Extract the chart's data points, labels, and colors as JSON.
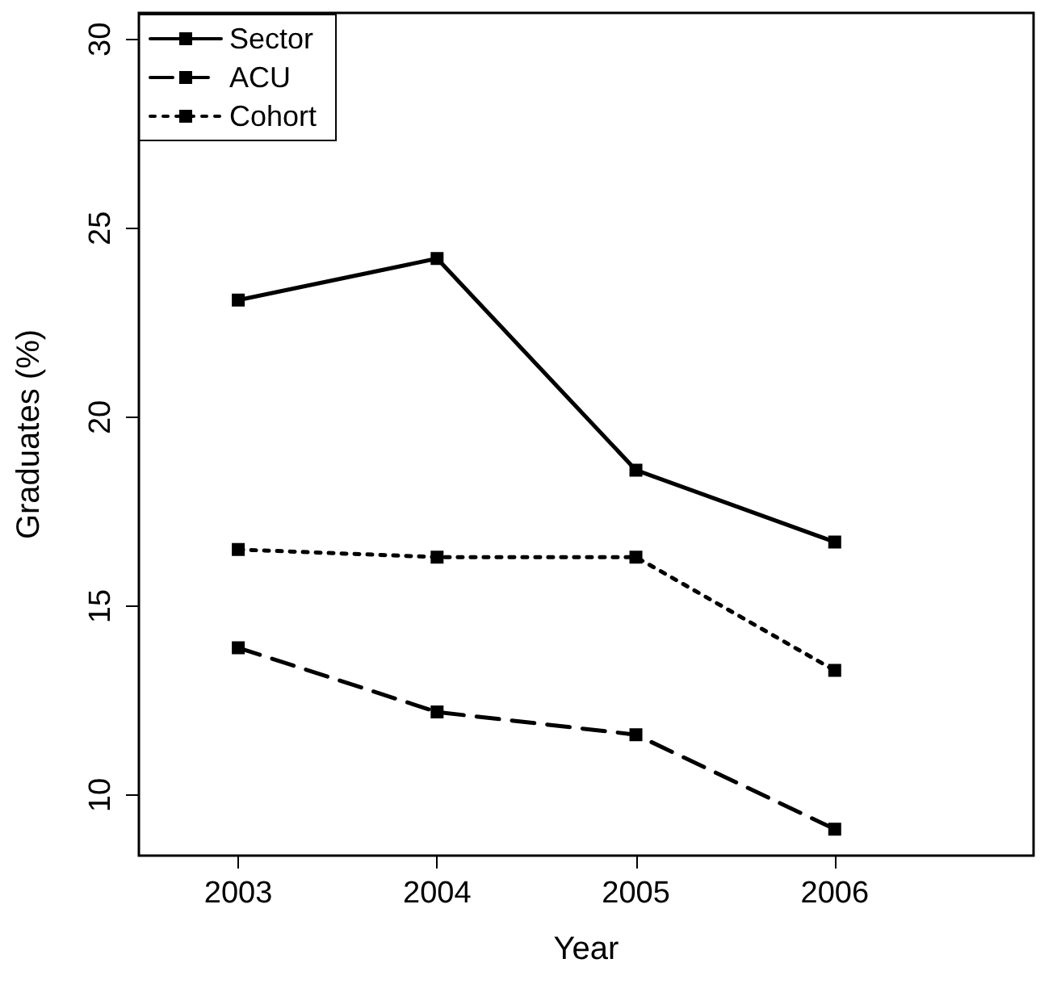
{
  "chart_data": {
    "type": "line",
    "xlabel": "Year",
    "ylabel": "Graduates (%)",
    "x": [
      2003,
      2004,
      2005,
      2006
    ],
    "series": [
      {
        "name": "Sector",
        "color": "#000000",
        "line_style": "solid",
        "values": [
          23.1,
          24.2,
          18.6,
          16.7
        ]
      },
      {
        "name": "ACU",
        "color": "#000000",
        "line_style": "dashed",
        "values": [
          13.9,
          12.2,
          11.6,
          9.1
        ]
      },
      {
        "name": "Cohort",
        "color": "#000000",
        "line_style": "dotted",
        "values": [
          16.5,
          16.3,
          16.3,
          13.3
        ]
      }
    ],
    "xlim": [
      2002.5,
      2007
    ],
    "xticks": [
      2003,
      2004,
      2005,
      2006
    ],
    "ylim": [
      8.4,
      30.7
    ],
    "yticks": [
      10,
      15,
      20,
      25,
      30
    ],
    "marker": "square",
    "grid": false,
    "legend": "top left"
  }
}
